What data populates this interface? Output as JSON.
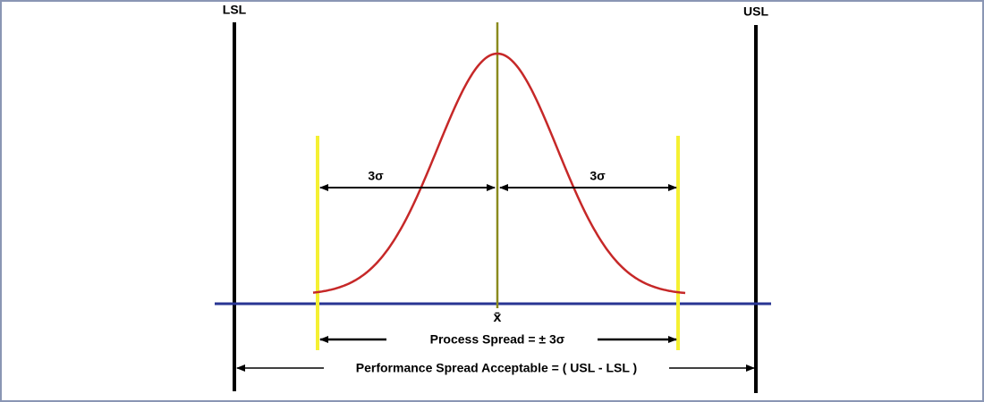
{
  "limits": {
    "lower": "LSL",
    "upper": "USL"
  },
  "sigma_labels": [
    "3σ",
    "3σ"
  ],
  "mean_label": "x̄",
  "process_spread": "Process Spread = ± 3σ",
  "performance_spread": "Performance Spread Acceptable  = ( USL - LSL )"
}
